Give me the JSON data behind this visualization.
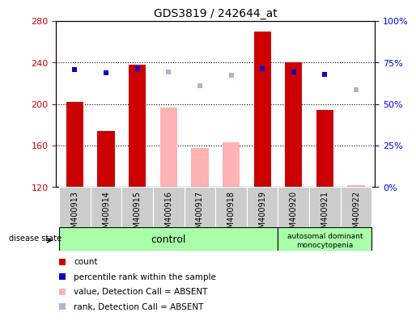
{
  "title": "GDS3819 / 242644_at",
  "samples": [
    "GSM400913",
    "GSM400914",
    "GSM400915",
    "GSM400916",
    "GSM400917",
    "GSM400918",
    "GSM400919",
    "GSM400920",
    "GSM400921",
    "GSM400922"
  ],
  "bar_values": [
    202,
    174,
    238,
    197,
    158,
    163,
    270,
    240,
    194,
    122
  ],
  "bar_absent": [
    false,
    false,
    false,
    true,
    true,
    true,
    false,
    false,
    false,
    true
  ],
  "rank_values": [
    233,
    230,
    234,
    231,
    218,
    228,
    234,
    231,
    229,
    214
  ],
  "rank_absent": [
    false,
    false,
    false,
    true,
    true,
    true,
    false,
    false,
    false,
    true
  ],
  "ylim_left": [
    120,
    280
  ],
  "ylim_right": [
    0,
    100
  ],
  "yticks_left": [
    120,
    160,
    200,
    240,
    280
  ],
  "yticks_right": [
    0,
    25,
    50,
    75,
    100
  ],
  "yticklabels_right": [
    "0%",
    "25%",
    "50%",
    "75%",
    "100%"
  ],
  "bar_color_present": "#cc0000",
  "bar_color_absent": "#ffb3b3",
  "rank_color_present": "#0000cc",
  "rank_color_absent": "#b3b3cc",
  "bar_width": 0.55,
  "group_color": "#aaffaa",
  "tick_area_color": "#cccccc",
  "disease_state_label": "disease state",
  "legend_items": [
    {
      "label": "count",
      "color": "#cc0000"
    },
    {
      "label": "percentile rank within the sample",
      "color": "#0000cc"
    },
    {
      "label": "value, Detection Call = ABSENT",
      "color": "#ffb3b3"
    },
    {
      "label": "rank, Detection Call = ABSENT",
      "color": "#b3b3cc"
    }
  ]
}
